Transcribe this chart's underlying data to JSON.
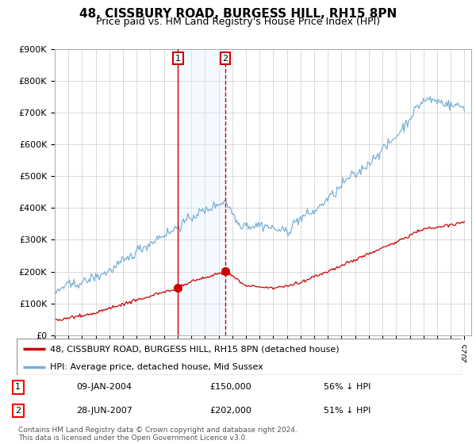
{
  "title": "48, CISSBURY ROAD, BURGESS HILL, RH15 8PN",
  "subtitle": "Price paid vs. HM Land Registry's House Price Index (HPI)",
  "ylim": [
    0,
    900000
  ],
  "yticks": [
    0,
    100000,
    200000,
    300000,
    400000,
    500000,
    600000,
    700000,
    800000,
    900000
  ],
  "ytick_labels": [
    "£0",
    "£100K",
    "£200K",
    "£300K",
    "£400K",
    "£500K",
    "£600K",
    "£700K",
    "£800K",
    "£900K"
  ],
  "sale1_date_num": 2004.03,
  "sale1_price": 150000,
  "sale1_label": "1",
  "sale1_date_str": "09-JAN-2004",
  "sale1_pct": "56% ↓ HPI",
  "sale2_date_num": 2007.49,
  "sale2_price": 202000,
  "sale2_label": "2",
  "sale2_date_str": "28-JUN-2007",
  "sale2_pct": "51% ↓ HPI",
  "line_price_color": "#cc0000",
  "line_hpi_color": "#7ab0d4",
  "shade_color": "#ddeeff",
  "vline1_color": "#cc0000",
  "vline2_color": "#cc0000",
  "legend_label_price": "48, CISSBURY ROAD, BURGESS HILL, RH15 8PN (detached house)",
  "legend_label_hpi": "HPI: Average price, detached house, Mid Sussex",
  "footer": "Contains HM Land Registry data © Crown copyright and database right 2024.\nThis data is licensed under the Open Government Licence v3.0.",
  "background_color": "#ffffff",
  "grid_color": "#cccccc",
  "xlim_left": 1995.0,
  "xlim_right": 2025.5
}
